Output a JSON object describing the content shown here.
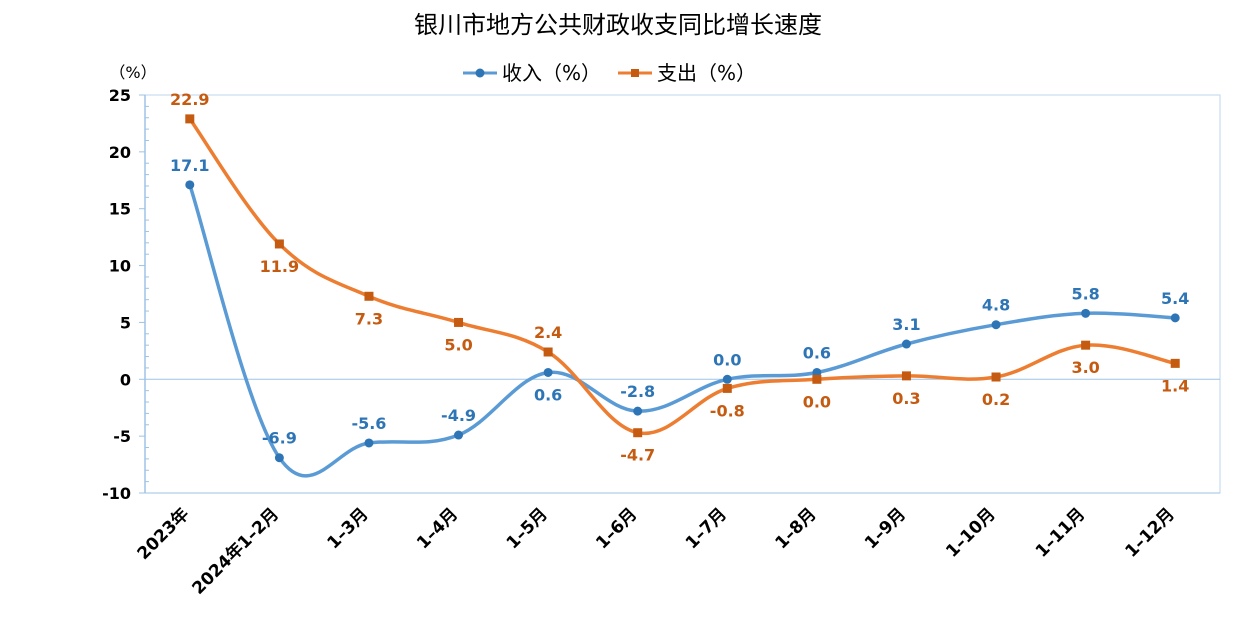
{
  "chart_data": {
    "type": "line",
    "title": "银川市地方公共财政收支同比增长速度",
    "y_unit": "（%）",
    "categories": [
      "2023年",
      "2024年1–2月",
      "1–3月",
      "1–4月",
      "1–5月",
      "1–6月",
      "1–7月",
      "1–8月",
      "1–9月",
      "1–10月",
      "1–11月",
      "1–12月"
    ],
    "ylim": [
      -10,
      25
    ],
    "yticks": [
      -10,
      -5,
      0,
      5,
      10,
      15,
      20,
      25
    ],
    "legend_position": "top-center",
    "smooth": true,
    "series": [
      {
        "name": "收入（%）",
        "color": "#5B9BD5",
        "label_color": "#2E75B6",
        "marker": "circle",
        "values": [
          17.1,
          -6.9,
          -5.6,
          -4.9,
          0.6,
          -2.8,
          0.0,
          0.6,
          3.1,
          4.8,
          5.8,
          5.4
        ],
        "labels": [
          "17.1",
          "-6.9",
          "-5.6",
          "-4.9",
          "0.6",
          "-2.8",
          "0.0",
          "0.6",
          "3.1",
          "4.8",
          "5.8",
          "5.4"
        ],
        "label_pos": [
          "above",
          "above",
          "above",
          "above",
          "below",
          "above",
          "above",
          "above",
          "above",
          "above",
          "above",
          "above"
        ]
      },
      {
        "name": "支出（%）",
        "color": "#ED7D31",
        "label_color": "#C55A11",
        "marker": "square",
        "values": [
          22.9,
          11.9,
          7.3,
          5.0,
          2.4,
          -4.7,
          -0.8,
          0.0,
          0.3,
          0.2,
          3.0,
          1.4
        ],
        "labels": [
          "22.9",
          "11.9",
          "7.3",
          "5.0",
          "2.4",
          "-4.7",
          "-0.8",
          "0.0",
          "0.3",
          "0.2",
          "3.0",
          "1.4"
        ],
        "label_pos": [
          "above",
          "below",
          "below",
          "below",
          "above",
          "below",
          "below",
          "below",
          "below",
          "below",
          "below",
          "below"
        ]
      }
    ]
  }
}
